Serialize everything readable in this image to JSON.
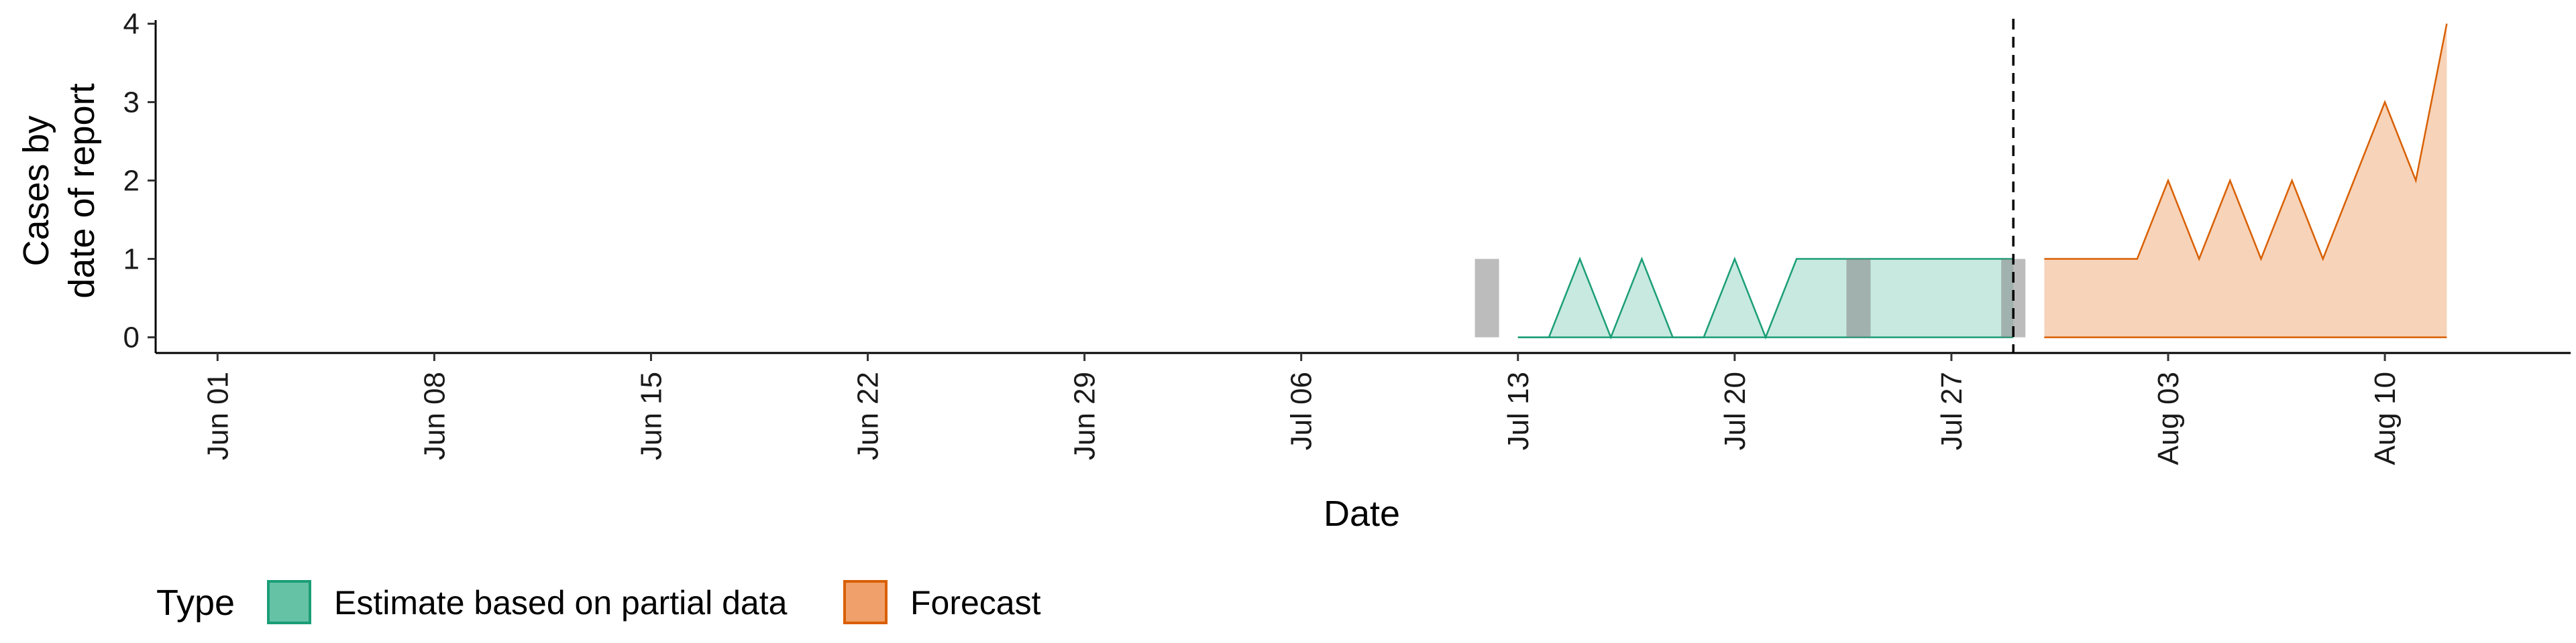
{
  "chart_data": {
    "type": "area",
    "xlabel": "Date",
    "ylabel_lines": [
      "Cases by",
      "date of report"
    ],
    "xlim": [
      "2020-05-30",
      "2020-08-16"
    ],
    "ylim": [
      -0.2,
      4.2
    ],
    "y_ticks": [
      0,
      1,
      2,
      3,
      4
    ],
    "x_ticks": [
      {
        "date": "2020-06-01",
        "label": "Jun 01"
      },
      {
        "date": "2020-06-08",
        "label": "Jun 08"
      },
      {
        "date": "2020-06-15",
        "label": "Jun 15"
      },
      {
        "date": "2020-06-22",
        "label": "Jun 22"
      },
      {
        "date": "2020-06-29",
        "label": "Jun 29"
      },
      {
        "date": "2020-07-06",
        "label": "Jul 06"
      },
      {
        "date": "2020-07-13",
        "label": "Jul 13"
      },
      {
        "date": "2020-07-20",
        "label": "Jul 20"
      },
      {
        "date": "2020-07-27",
        "label": "Jul 27"
      },
      {
        "date": "2020-08-03",
        "label": "Aug 03"
      },
      {
        "date": "2020-08-10",
        "label": "Aug 10"
      }
    ],
    "grid": false,
    "legend": {
      "position": "bottom-left",
      "title": "Type",
      "entries": [
        {
          "label": "Estimate based on partial data",
          "fill": "#66c2a5",
          "stroke": "#1b9e77"
        },
        {
          "label": "Forecast",
          "fill": "#f0a06a",
          "stroke": "#d95f02"
        }
      ]
    },
    "series": [
      {
        "name": "Estimate based on partial data",
        "fill": "#c7e9df",
        "stroke": "#1b9e77",
        "x": [
          "2020-07-13",
          "2020-07-14",
          "2020-07-15",
          "2020-07-16",
          "2020-07-17",
          "2020-07-18",
          "2020-07-19",
          "2020-07-20",
          "2020-07-21",
          "2020-07-22",
          "2020-07-23",
          "2020-07-24",
          "2020-07-25",
          "2020-07-26",
          "2020-07-27",
          "2020-07-28",
          "2020-07-29"
        ],
        "y": [
          0,
          0,
          1,
          0,
          1,
          0,
          0,
          1,
          0,
          1,
          1,
          1,
          1,
          1,
          1,
          1,
          1
        ]
      },
      {
        "name": "Forecast",
        "fill": "#f6d3b9",
        "stroke": "#d95f02",
        "x": [
          "2020-07-30",
          "2020-07-31",
          "2020-08-01",
          "2020-08-02",
          "2020-08-03",
          "2020-08-04",
          "2020-08-05",
          "2020-08-06",
          "2020-08-07",
          "2020-08-08",
          "2020-08-09",
          "2020-08-10",
          "2020-08-11",
          "2020-08-12"
        ],
        "y": [
          1,
          1,
          1,
          1,
          2,
          1,
          2,
          1,
          2,
          1,
          2,
          3,
          2,
          4
        ]
      }
    ],
    "grey_bars": [
      {
        "date": "2020-07-12",
        "y": 1
      },
      {
        "date": "2020-07-24",
        "y": 1
      },
      {
        "date": "2020-07-29",
        "y": 1
      }
    ],
    "vline": {
      "date": "2020-07-29",
      "style": "dashed"
    }
  }
}
